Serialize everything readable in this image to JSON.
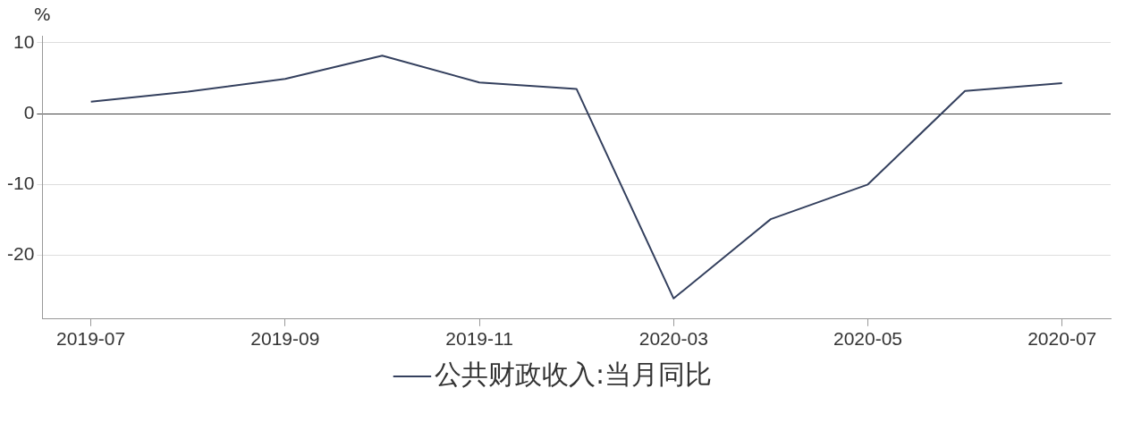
{
  "chart_data": {
    "type": "line",
    "ylabel": "%",
    "categories": [
      "2019-07",
      null,
      "2019-09",
      null,
      "2019-11",
      null,
      "2020-03",
      null,
      "2020-05",
      null,
      "2020-07"
    ],
    "series": [
      {
        "name": "公共财政收入:当月同比",
        "color": "#34405e",
        "values": [
          1.7,
          3.1,
          4.9,
          8.2,
          4.4,
          3.5,
          -26.1,
          -14.9,
          -10.0,
          3.2,
          4.3
        ]
      }
    ],
    "ylim": [
      -29,
      11
    ],
    "yticks": [
      -20,
      -10,
      0,
      10
    ],
    "grid": "y",
    "legend": "bottom",
    "marker": "none",
    "line_style": "solid"
  }
}
